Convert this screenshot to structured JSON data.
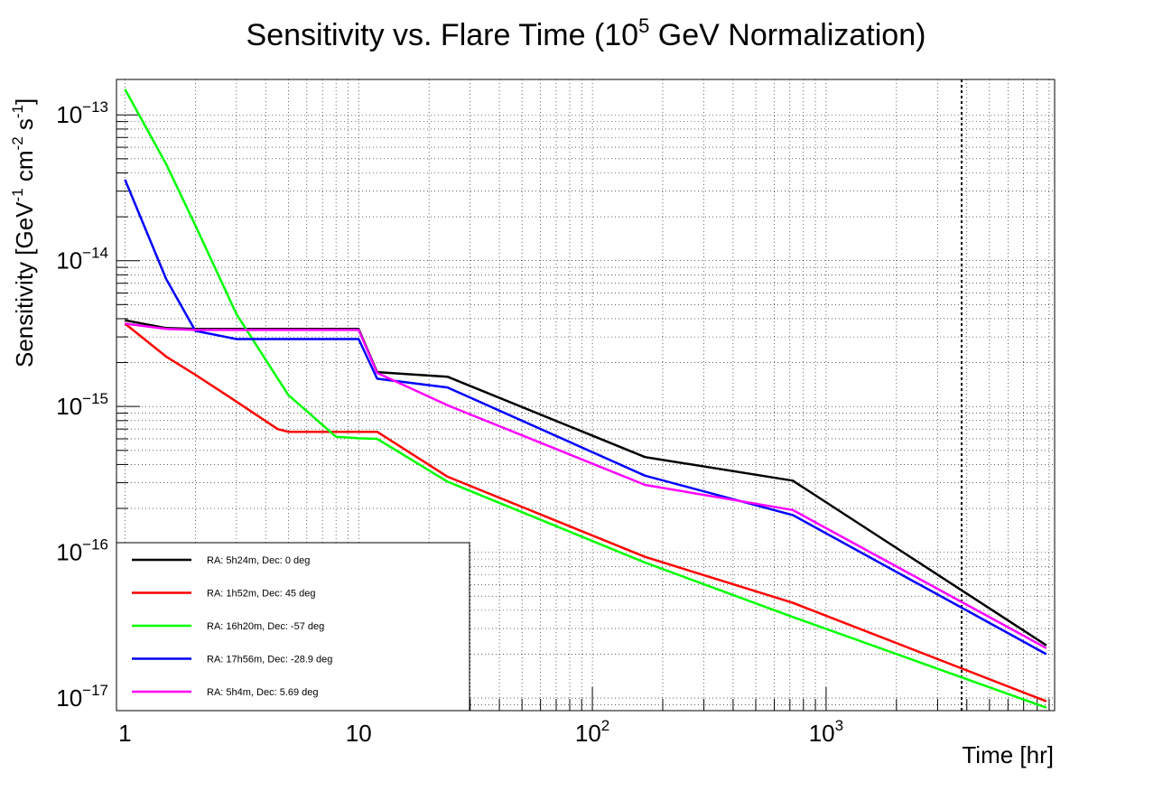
{
  "chart_data": {
    "type": "line",
    "title": {
      "prefix": "Sensitivity vs. Flare Time (10",
      "exp": "5",
      "suffix": " GeV Normalization)"
    },
    "xlabel": "Time [hr]",
    "ylabel": {
      "a": "Sensitivity [GeV",
      "a_exp": "-1",
      "b": " cm",
      "b_exp": "-2",
      "c": " s",
      "c_exp": "-1",
      "d": "]"
    },
    "x_scale": "log",
    "y_scale": "log",
    "xlim": [
      0.92,
      9500
    ],
    "ylim": [
      8.2e-18,
      1.75e-13
    ],
    "grid": true,
    "x_ticks": [
      {
        "value": 1,
        "base": "1",
        "exp": ""
      },
      {
        "value": 10,
        "base": "10",
        "exp": ""
      },
      {
        "value": 100,
        "base": "10",
        "exp": "2"
      },
      {
        "value": 1000,
        "base": "10",
        "exp": "3"
      }
    ],
    "y_ticks": [
      {
        "value": 1e-13,
        "base": "10",
        "exp": "−13"
      },
      {
        "value": 1e-14,
        "base": "10",
        "exp": "−14"
      },
      {
        "value": 1e-15,
        "base": "10",
        "exp": "−15"
      },
      {
        "value": 1e-16,
        "base": "10",
        "exp": "−16"
      },
      {
        "value": 1e-17,
        "base": "10",
        "exp": "−17"
      }
    ],
    "vline": {
      "x": 3800,
      "style": "dotted",
      "color": "#000000"
    },
    "legend_position": "bottom-left",
    "series": [
      {
        "name": "RA: 5h24m, Dec: 0 deg",
        "color": "#000000",
        "x": [
          1,
          1.5,
          2,
          3,
          5,
          10,
          12,
          24,
          168,
          720,
          8760
        ],
        "y": [
          3.9e-15,
          3.45e-15,
          3.4e-15,
          3.4e-15,
          3.4e-15,
          3.4e-15,
          1.72e-15,
          1.6e-15,
          4.5e-16,
          3.1e-16,
          2.3e-17
        ]
      },
      {
        "name": "RA: 1h52m, Dec: 45 deg",
        "color": "#ff0000",
        "x": [
          1,
          1.5,
          2,
          3,
          4.5,
          5,
          10,
          12,
          24,
          168,
          720,
          8760
        ],
        "y": [
          3.7e-15,
          2.2e-15,
          1.65e-15,
          1.08e-15,
          7e-16,
          6.7e-16,
          6.7e-16,
          6.7e-16,
          3.3e-16,
          9.3e-17,
          4.5e-17,
          9.5e-18
        ]
      },
      {
        "name": "RA: 16h20m, Dec: -57 deg",
        "color": "#00ff00",
        "x": [
          1,
          1.5,
          2,
          3,
          5,
          8,
          10,
          12,
          24,
          168,
          720,
          8760
        ],
        "y": [
          1.5e-13,
          4.6e-14,
          1.75e-14,
          4.3e-15,
          1.2e-15,
          6.2e-16,
          6.05e-16,
          6e-16,
          3.05e-16,
          8.5e-17,
          3.6e-17,
          8.6e-18
        ]
      },
      {
        "name": "RA: 17h56m, Dec: -28.9 deg",
        "color": "#0000ff",
        "x": [
          1,
          1.5,
          2,
          3,
          5,
          10,
          12,
          24,
          168,
          720,
          8760
        ],
        "y": [
          3.6e-14,
          7.5e-15,
          3.3e-15,
          2.9e-15,
          2.9e-15,
          2.9e-15,
          1.55e-15,
          1.35e-15,
          3.35e-16,
          1.8e-16,
          2e-17
        ]
      },
      {
        "name": "RA: 5h4m, Dec: 5.69 deg",
        "color": "#ff00ff",
        "x": [
          1,
          1.5,
          2,
          3,
          5,
          10,
          12,
          24,
          168,
          720,
          8760
        ],
        "y": [
          3.7e-15,
          3.4e-15,
          3.35e-15,
          3.35e-15,
          3.35e-15,
          3.35e-15,
          1.7e-15,
          1.02e-15,
          2.9e-16,
          1.95e-16,
          2.2e-17
        ]
      }
    ]
  }
}
